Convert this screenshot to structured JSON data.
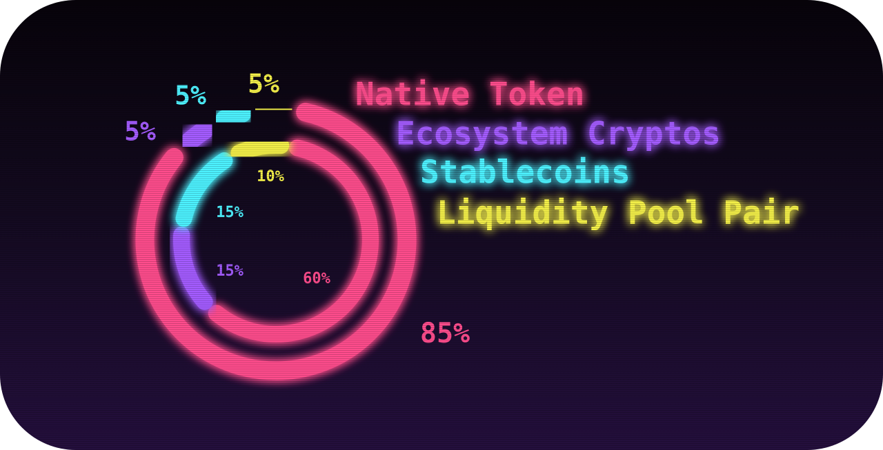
{
  "chart_data": {
    "type": "pie",
    "variant": "nested-donut",
    "categories": [
      "Native Token",
      "Ecosystem Cryptos",
      "Stablecoins",
      "Liquidity Pool Pair"
    ],
    "colors": {
      "Native Token": "#ff4d8d",
      "Ecosystem Cryptos": "#a45cff",
      "Stablecoins": "#4ef2ff",
      "Liquidity Pool Pair": "#f4f04a"
    },
    "series": [
      {
        "ring": "outer",
        "values": [
          85,
          5,
          5,
          5
        ],
        "labels": [
          "85%",
          "5%",
          "5%",
          "5%"
        ]
      },
      {
        "ring": "inner",
        "values": [
          60,
          15,
          15,
          10
        ],
        "labels": [
          "60%",
          "15%",
          "15%",
          "10%"
        ]
      }
    ],
    "legend": {
      "position": "right",
      "entries": [
        "Native Token",
        "Ecosystem Cryptos",
        "Stablecoins",
        "Liquidity Pool Pair"
      ]
    }
  }
}
